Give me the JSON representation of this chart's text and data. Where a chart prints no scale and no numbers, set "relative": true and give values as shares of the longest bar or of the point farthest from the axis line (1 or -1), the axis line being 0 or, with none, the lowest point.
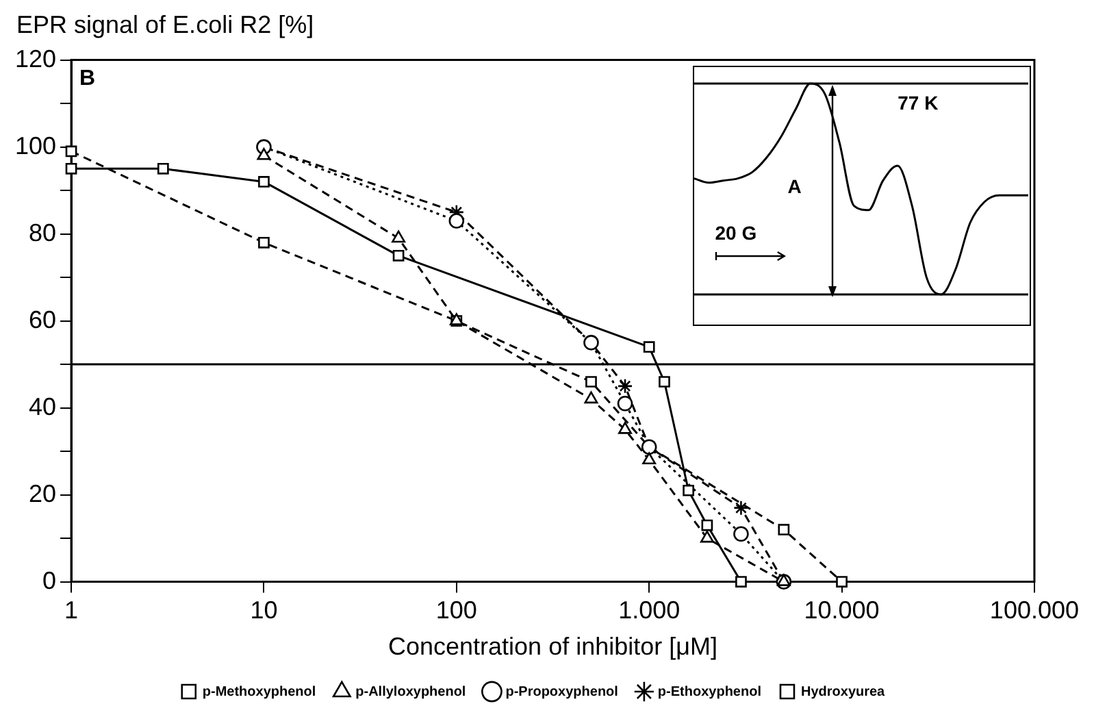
{
  "chart_data": [
    {
      "type": "line",
      "ylabel": "EPR signal of E.coli R2 [%]",
      "xlabel": "Concentration of inhibitor [μM]",
      "log": "x",
      "xlim": [
        1,
        100000
      ],
      "xticks": [
        1,
        10,
        100,
        {
          "value": 1000,
          "label": "1.000"
        },
        {
          "value": 10000,
          "label": "10.000"
        },
        {
          "value": 100000,
          "label": "100.000"
        }
      ],
      "ylim": [
        0,
        120
      ],
      "yticks": [
        0,
        {
          "value": 10,
          "label": null
        },
        20,
        {
          "value": 30,
          "label": null
        },
        40,
        {
          "value": 50,
          "label": null
        },
        60,
        {
          "value": 70,
          "label": null
        },
        80,
        {
          "value": 90,
          "label": null
        },
        100,
        {
          "value": 110,
          "label": null
        },
        120
      ],
      "grid": false,
      "legend": "bottom",
      "ref_lines": [
        {
          "axis": "y",
          "value": 50,
          "color": "#000000",
          "line_style": "solid"
        }
      ],
      "annotations": [
        "B"
      ],
      "series": [
        {
          "name": "p-Methoxyphenol",
          "color": "#000000",
          "marker": "square",
          "line_style": "solid",
          "x": [
            1,
            3,
            10,
            50,
            1000,
            1200,
            1600,
            2000,
            3000
          ],
          "values": [
            95,
            95,
            92,
            75,
            54,
            46,
            21,
            13,
            0
          ]
        },
        {
          "name": "p-Allyloxyphenol",
          "color": "#000000",
          "marker": "triangle",
          "line_style": "dashed",
          "x": [
            10,
            50,
            100,
            500,
            750,
            1000,
            2000,
            5000
          ],
          "values": [
            98,
            79,
            60,
            42,
            35,
            28,
            10,
            0
          ]
        },
        {
          "name": "p-Propoxyphenol",
          "color": "#000000",
          "marker": "circle",
          "line_style": "dotted",
          "x": [
            10,
            100,
            500,
            750,
            1000,
            3000,
            5000
          ],
          "values": [
            100,
            83,
            55,
            41,
            31,
            11,
            0
          ]
        },
        {
          "name": "p-Ethoxyphenol",
          "color": "#000000",
          "marker": "cross",
          "line_style": "dashed",
          "x": [
            10,
            100,
            500,
            750,
            1000,
            3000,
            5000
          ],
          "values": [
            100,
            85,
            55,
            45,
            31,
            17,
            0
          ]
        },
        {
          "name": "Hydroxyurea",
          "color": "#000000",
          "marker": "square",
          "line_style": "dashed",
          "x": [
            1,
            10,
            100,
            500,
            1000,
            5000,
            10000
          ],
          "values": [
            99,
            78,
            60,
            46,
            31,
            12,
            0
          ]
        }
      ]
    },
    {
      "type": "line",
      "relative": true,
      "grid": false,
      "ref_lines": [
        {
          "axis": "y",
          "value": 1,
          "color": "#000000",
          "line_style": "solid"
        },
        {
          "axis": "y",
          "value": 0,
          "color": "#000000",
          "line_style": "solid"
        }
      ],
      "annotations": [
        "77 K",
        "A",
        "20 G"
      ],
      "categories": [
        null,
        null,
        null,
        null,
        null,
        null,
        null,
        null,
        null,
        null,
        null,
        null,
        null,
        null,
        null,
        null,
        null,
        null,
        null,
        null,
        null,
        null,
        null,
        null
      ],
      "series": [
        {
          "color": "#000000",
          "marker": "none",
          "line_style": "solid",
          "values": [
            0.55,
            0.53,
            0.54,
            0.55,
            0.58,
            0.65,
            0.75,
            0.88,
            1,
            0.95,
            0.72,
            0.42,
            0.4,
            0.54,
            0.61,
            0.42,
            0.08,
            0,
            0.12,
            0.34,
            0.44,
            0.47,
            0.47,
            0.47
          ]
        }
      ]
    }
  ]
}
